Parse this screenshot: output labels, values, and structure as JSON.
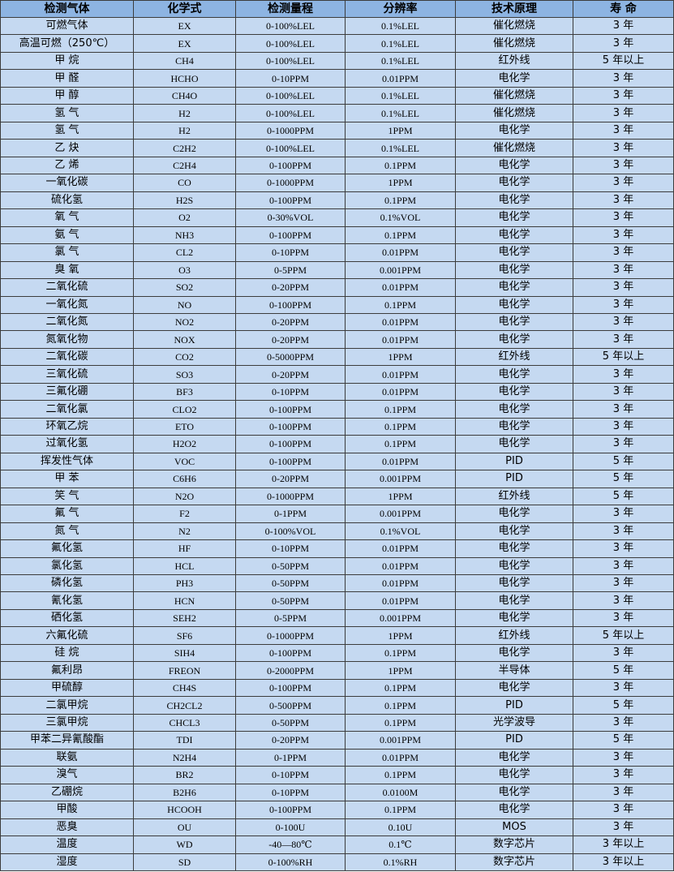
{
  "colors": {
    "header_bg": "#8db4e2",
    "row_bg": "#c5d9f1",
    "border": "#3c3c3c"
  },
  "headers": [
    "检测气体",
    "化学式",
    "检测量程",
    "分辨率",
    "技术原理",
    "寿 命"
  ],
  "rows": [
    [
      "可燃气体",
      "EX",
      "0-100%LEL",
      "0.1%LEL",
      "催化燃烧",
      "3 年"
    ],
    [
      "高温可燃（250℃）",
      "EX",
      "0-100%LEL",
      "0.1%LEL",
      "催化燃烧",
      "3 年"
    ],
    [
      "甲 烷",
      "CH4",
      "0-100%LEL",
      "0.1%LEL",
      "红外线",
      "5 年以上"
    ],
    [
      "甲 醛",
      "HCHO",
      "0-10PPM",
      "0.01PPM",
      "电化学",
      "3 年"
    ],
    [
      "甲 醇",
      "CH4O",
      "0-100%LEL",
      "0.1%LEL",
      "催化燃烧",
      "3 年"
    ],
    [
      "氢 气",
      "H2",
      "0-100%LEL",
      "0.1%LEL",
      "催化燃烧",
      "3 年"
    ],
    [
      "氢 气",
      "H2",
      "0-1000PPM",
      "1PPM",
      "电化学",
      "3 年"
    ],
    [
      "乙 炔",
      "C2H2",
      "0-100%LEL",
      "0.1%LEL",
      "催化燃烧",
      "3 年"
    ],
    [
      "乙 烯",
      "C2H4",
      "0-100PPM",
      "0.1PPM",
      "电化学",
      "3 年"
    ],
    [
      "一氧化碳",
      "CO",
      "0-1000PPM",
      "1PPM",
      "电化学",
      "3 年"
    ],
    [
      "硫化氢",
      "H2S",
      "0-100PPM",
      "0.1PPM",
      "电化学",
      "3 年"
    ],
    [
      "氧 气",
      "O2",
      "0-30%VOL",
      "0.1%VOL",
      "电化学",
      "3 年"
    ],
    [
      "氨 气",
      "NH3",
      "0-100PPM",
      "0.1PPM",
      "电化学",
      "3 年"
    ],
    [
      "氯 气",
      "CL2",
      "0-10PPM",
      "0.01PPM",
      "电化学",
      "3 年"
    ],
    [
      "臭 氧",
      "O3",
      "0-5PPM",
      "0.001PPM",
      "电化学",
      "3 年"
    ],
    [
      "二氧化硫",
      "SO2",
      "0-20PPM",
      "0.01PPM",
      "电化学",
      "3 年"
    ],
    [
      "一氧化氮",
      "NO",
      "0-100PPM",
      "0.1PPM",
      "电化学",
      "3 年"
    ],
    [
      "二氧化氮",
      "NO2",
      "0-20PPM",
      "0.01PPM",
      "电化学",
      "3 年"
    ],
    [
      "氮氧化物",
      "NOX",
      "0-20PPM",
      "0.01PPM",
      "电化学",
      "3 年"
    ],
    [
      "二氧化碳",
      "CO2",
      "0-5000PPM",
      "1PPM",
      "红外线",
      "5 年以上"
    ],
    [
      "三氧化硫",
      "SO3",
      "0-20PPM",
      "0.01PPM",
      "电化学",
      "3 年"
    ],
    [
      "三氟化硼",
      "BF3",
      "0-10PPM",
      "0.01PPM",
      "电化学",
      "3 年"
    ],
    [
      "二氧化氯",
      "CLO2",
      "0-100PPM",
      "0.1PPM",
      "电化学",
      "3 年"
    ],
    [
      "环氧乙烷",
      "ETO",
      "0-100PPM",
      "0.1PPM",
      "电化学",
      "3 年"
    ],
    [
      "过氧化氢",
      "H2O2",
      "0-100PPM",
      "0.1PPM",
      "电化学",
      "3 年"
    ],
    [
      "挥发性气体",
      "VOC",
      "0-100PPM",
      "0.01PPM",
      "PID",
      "5 年"
    ],
    [
      "甲 苯",
      "C6H6",
      "0-20PPM",
      "0.001PPM",
      "PID",
      "5 年"
    ],
    [
      "笑 气",
      "N2O",
      "0-1000PPM",
      "1PPM",
      "红外线",
      "5 年"
    ],
    [
      "氟 气",
      "F2",
      "0-1PPM",
      "0.001PPM",
      "电化学",
      "3 年"
    ],
    [
      "氮 气",
      "N2",
      "0-100%VOL",
      "0.1%VOL",
      "电化学",
      "3 年"
    ],
    [
      "氟化氢",
      "HF",
      "0-10PPM",
      "0.01PPM",
      "电化学",
      "3 年"
    ],
    [
      "氯化氢",
      "HCL",
      "0-50PPM",
      "0.01PPM",
      "电化学",
      "3 年"
    ],
    [
      "磷化氢",
      "PH3",
      "0-50PPM",
      "0.01PPM",
      "电化学",
      "3 年"
    ],
    [
      "氰化氢",
      "HCN",
      "0-50PPM",
      "0.01PPM",
      "电化学",
      "3 年"
    ],
    [
      "硒化氢",
      "SEH2",
      "0-5PPM",
      "0.001PPM",
      "电化学",
      "3 年"
    ],
    [
      "六氟化硫",
      "SF6",
      "0-1000PPM",
      "1PPM",
      "红外线",
      "5 年以上"
    ],
    [
      "硅 烷",
      "SIH4",
      "0-100PPM",
      "0.1PPM",
      "电化学",
      "3 年"
    ],
    [
      "氟利昂",
      "FREON",
      "0-2000PPM",
      "1PPM",
      "半导体",
      "5 年"
    ],
    [
      "甲硫醇",
      "CH4S",
      "0-100PPM",
      "0.1PPM",
      "电化学",
      "3 年"
    ],
    [
      "二氯甲烷",
      "CH2CL2",
      "0-500PPM",
      "0.1PPM",
      "PID",
      "5 年"
    ],
    [
      "三氯甲烷",
      "CHCL3",
      "0-50PPM",
      "0.1PPM",
      "光学波导",
      "3 年"
    ],
    [
      "甲苯二异氰酸酯",
      "TDI",
      "0-20PPM",
      "0.001PPM",
      "PID",
      "5 年"
    ],
    [
      "联氨",
      "N2H4",
      "0-1PPM",
      "0.01PPM",
      "电化学",
      "3 年"
    ],
    [
      "溴气",
      "BR2",
      "0-10PPM",
      "0.1PPM",
      "电化学",
      "3 年"
    ],
    [
      "乙硼烷",
      "B2H6",
      "0-10PPM",
      "0.0100M",
      "电化学",
      "3 年"
    ],
    [
      "甲酸",
      "HCOOH",
      "0-100PPM",
      "0.1PPM",
      "电化学",
      "3 年"
    ],
    [
      "恶臭",
      "OU",
      "0-100U",
      "0.10U",
      "MOS",
      "3 年"
    ],
    [
      "温度",
      "WD",
      "-40—80℃",
      "0.1℃",
      "数字芯片",
      "3 年以上"
    ],
    [
      "湿度",
      "SD",
      "0-100%RH",
      "0.1%RH",
      "数字芯片",
      "3 年以上"
    ]
  ]
}
